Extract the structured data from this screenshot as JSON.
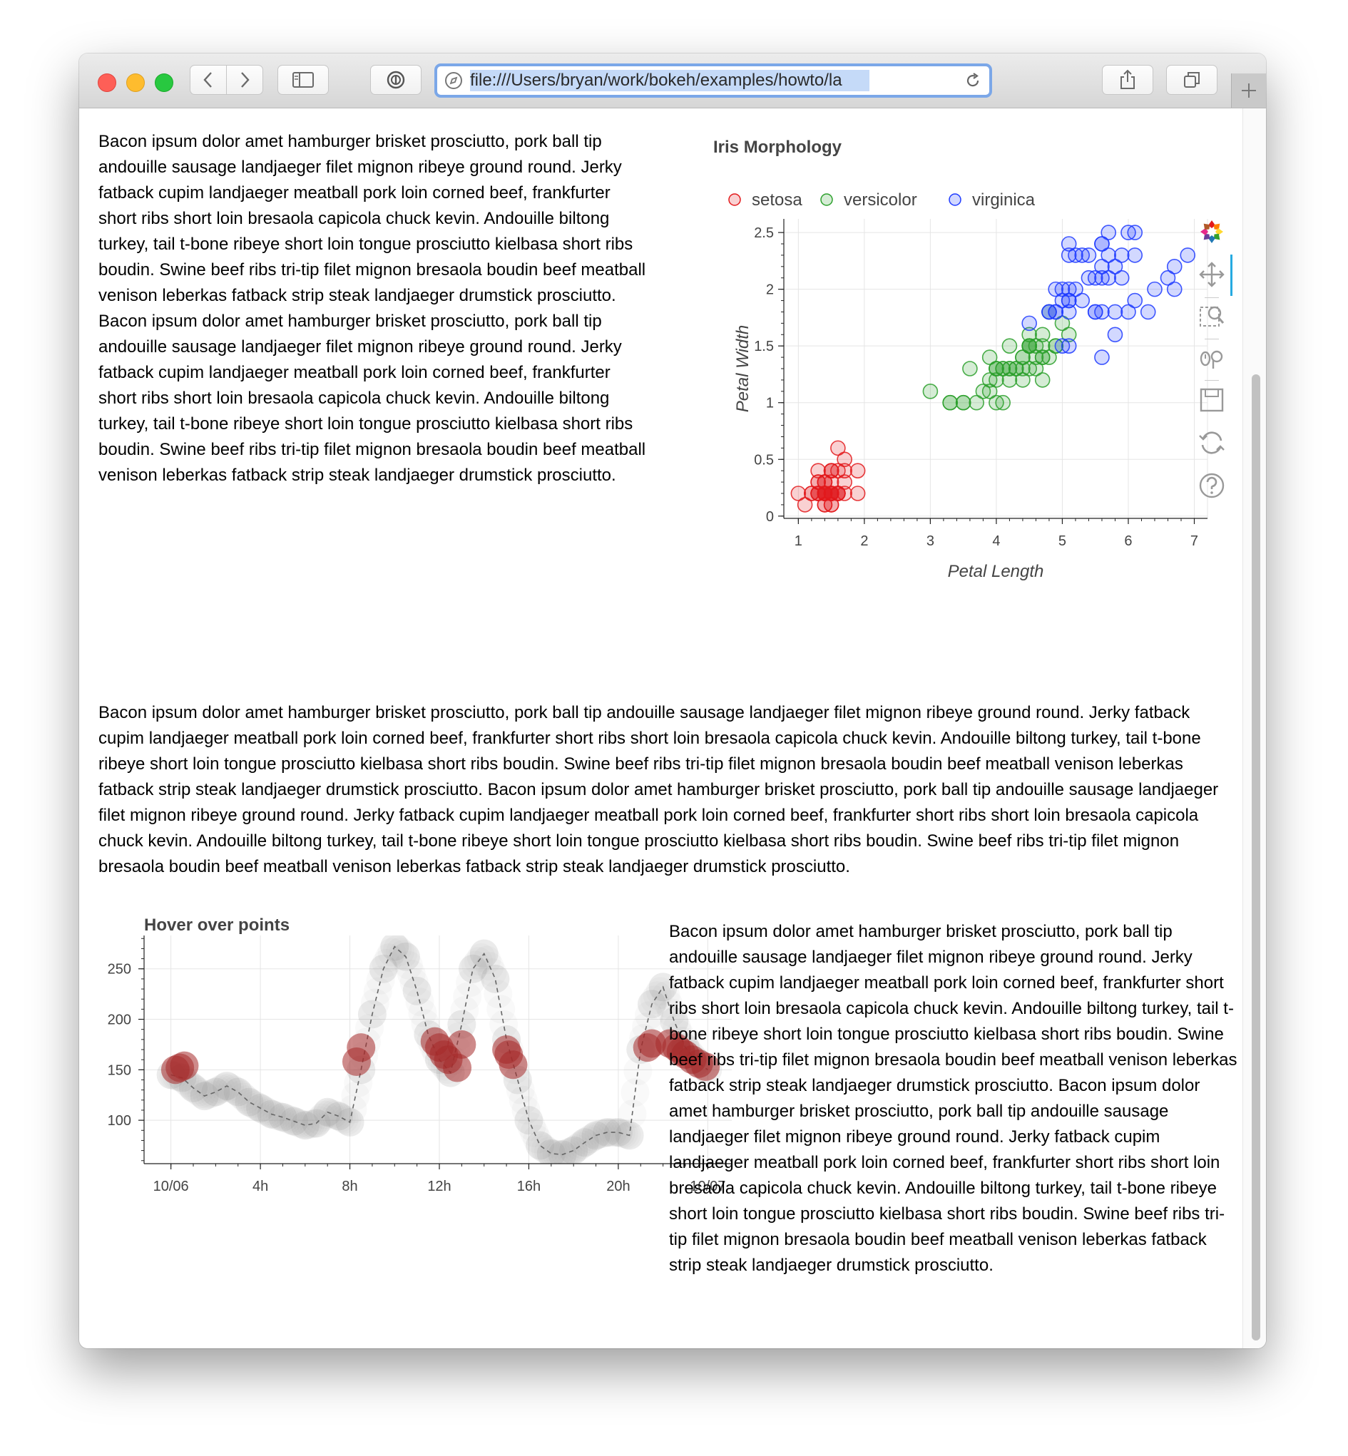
{
  "browser": {
    "url": "file:///Users/bryan/work/bokeh/examples/howto/la"
  },
  "paragraphs": {
    "p1": "Bacon ipsum dolor amet hamburger brisket prosciutto, pork ball tip andouille sausage landjaeger filet mignon ribeye ground round. Jerky fatback cupim landjaeger meatball pork loin corned beef, frankfurter short ribs short loin bresaola capicola chuck kevin. Andouille biltong turkey, tail t-bone ribeye short loin tongue prosciutto kielbasa short ribs boudin. Swine beef ribs tri-tip filet mignon bresaola boudin beef meatball venison leberkas fatback strip steak landjaeger drumstick prosciutto. Bacon ipsum dolor amet hamburger brisket prosciutto, pork ball tip andouille sausage landjaeger filet mignon ribeye ground round. Jerky fatback cupim landjaeger meatball pork loin corned beef, frankfurter short ribs short loin bresaola capicola chuck kevin. Andouille biltong turkey, tail t-bone ribeye short loin tongue prosciutto kielbasa short ribs boudin. Swine beef ribs tri-tip filet mignon bresaola boudin beef meatball venison leberkas fatback strip steak landjaeger drumstick prosciutto.",
    "p2": "Bacon ipsum dolor amet hamburger brisket prosciutto, pork ball tip andouille sausage landjaeger filet mignon ribeye ground round. Jerky fatback cupim landjaeger meatball pork loin corned beef, frankfurter short ribs short loin bresaola capicola chuck kevin. Andouille biltong turkey, tail t-bone ribeye short loin tongue prosciutto kielbasa short ribs boudin. Swine beef ribs tri-tip filet mignon bresaola boudin beef meatball venison leberkas fatback strip steak landjaeger drumstick prosciutto. Bacon ipsum dolor amet hamburger brisket prosciutto, pork ball tip andouille sausage landjaeger filet mignon ribeye ground round. Jerky fatback cupim landjaeger meatball pork loin corned beef, frankfurter short ribs short loin bresaola capicola chuck kevin. Andouille biltong turkey, tail t-bone ribeye short loin tongue prosciutto kielbasa short ribs boudin. Swine beef ribs tri-tip filet mignon bresaola boudin beef meatball venison leberkas fatback strip steak landjaeger drumstick prosciutto.",
    "p3": "Bacon ipsum dolor amet hamburger brisket prosciutto, pork ball tip andouille sausage landjaeger filet mignon ribeye ground round. Jerky fatback cupim landjaeger meatball pork loin corned beef, frankfurter short ribs short loin bresaola capicola chuck kevin. Andouille biltong turkey, tail t-bone ribeye short loin tongue prosciutto kielbasa short ribs boudin. Swine beef ribs tri-tip filet mignon bresaola boudin beef meatball venison leberkas fatback strip steak landjaeger drumstick prosciutto. Bacon ipsum dolor amet hamburger brisket prosciutto, pork ball tip andouille sausage landjaeger filet mignon ribeye ground round. Jerky fatback cupim landjaeger meatball pork loin corned beef, frankfurter short ribs short loin bresaola capicola chuck kevin. Andouille biltong turkey, tail t-bone ribeye short loin tongue prosciutto kielbasa short ribs boudin. Swine beef ribs tri-tip filet mignon bresaola boudin beef meatball venison leberkas fatback strip steak landjaeger drumstick prosciutto."
  },
  "toolbar_icons": [
    "bokeh-logo-icon",
    "pan-icon",
    "box-zoom-icon",
    "wheel-zoom-icon",
    "save-icon",
    "reset-icon",
    "help-icon"
  ],
  "chart_data": [
    {
      "type": "scatter",
      "title": "Iris Morphology",
      "xlabel": "Petal Length",
      "ylabel": "Petal Width",
      "xlim": [
        0.78,
        7.2
      ],
      "ylim": [
        -0.02,
        2.62
      ],
      "xticks": [
        "1",
        "2",
        "3",
        "4",
        "5",
        "6",
        "7"
      ],
      "yticks": [
        "0",
        "0.5",
        "1",
        "1.5",
        "2",
        "2.5"
      ],
      "grid": true,
      "legend": "top",
      "series": [
        {
          "name": "setosa",
          "color": "#e31a1c",
          "x": [
            1.4,
            1.4,
            1.3,
            1.5,
            1.4,
            1.7,
            1.4,
            1.5,
            1.4,
            1.5,
            1.5,
            1.6,
            1.4,
            1.1,
            1.2,
            1.5,
            1.3,
            1.4,
            1.7,
            1.5,
            1.7,
            1.5,
            1.0,
            1.7,
            1.9,
            1.6,
            1.6,
            1.5,
            1.4,
            1.6,
            1.6,
            1.5,
            1.5,
            1.4,
            1.5,
            1.2,
            1.3,
            1.4,
            1.3,
            1.5,
            1.3,
            1.3,
            1.3,
            1.6,
            1.9,
            1.4,
            1.6,
            1.4,
            1.5,
            1.4
          ],
          "y": [
            0.2,
            0.2,
            0.2,
            0.2,
            0.2,
            0.4,
            0.3,
            0.2,
            0.2,
            0.1,
            0.2,
            0.2,
            0.1,
            0.1,
            0.2,
            0.4,
            0.4,
            0.3,
            0.3,
            0.3,
            0.2,
            0.4,
            0.2,
            0.5,
            0.2,
            0.2,
            0.4,
            0.2,
            0.2,
            0.2,
            0.2,
            0.4,
            0.1,
            0.2,
            0.2,
            0.2,
            0.2,
            0.1,
            0.2,
            0.2,
            0.3,
            0.3,
            0.2,
            0.6,
            0.4,
            0.3,
            0.2,
            0.2,
            0.2,
            0.2
          ]
        },
        {
          "name": "versicolor",
          "color": "#2ca02c",
          "x": [
            4.7,
            4.5,
            4.9,
            4.0,
            4.6,
            4.5,
            4.7,
            3.3,
            4.6,
            3.9,
            3.5,
            4.2,
            4.0,
            4.7,
            3.6,
            4.4,
            4.5,
            4.1,
            4.5,
            3.9,
            4.8,
            4.0,
            4.9,
            4.7,
            4.3,
            4.4,
            4.8,
            5.0,
            4.5,
            3.5,
            3.8,
            3.7,
            3.9,
            5.1,
            4.5,
            4.5,
            4.7,
            4.4,
            4.1,
            4.0,
            4.4,
            4.6,
            4.0,
            3.3,
            4.2,
            4.2,
            4.2,
            4.3,
            3.0,
            4.1
          ],
          "y": [
            1.4,
            1.5,
            1.5,
            1.3,
            1.5,
            1.3,
            1.6,
            1.0,
            1.3,
            1.4,
            1.0,
            1.5,
            1.0,
            1.4,
            1.3,
            1.4,
            1.5,
            1.0,
            1.5,
            1.1,
            1.8,
            1.3,
            1.5,
            1.2,
            1.3,
            1.4,
            1.4,
            1.7,
            1.5,
            1.0,
            1.1,
            1.0,
            1.2,
            1.6,
            1.5,
            1.6,
            1.5,
            1.3,
            1.3,
            1.3,
            1.2,
            1.4,
            1.2,
            1.0,
            1.3,
            1.2,
            1.3,
            1.3,
            1.1,
            1.3
          ]
        },
        {
          "name": "virginica",
          "color": "#1f3bff",
          "x": [
            6.0,
            5.1,
            5.9,
            5.6,
            5.8,
            6.6,
            4.5,
            6.3,
            5.8,
            6.1,
            5.1,
            5.3,
            5.5,
            5.0,
            5.1,
            5.3,
            5.5,
            6.7,
            6.9,
            5.0,
            5.7,
            4.9,
            6.7,
            4.9,
            5.7,
            6.0,
            4.8,
            4.9,
            5.6,
            5.8,
            6.1,
            6.4,
            5.6,
            5.1,
            5.6,
            6.1,
            5.6,
            5.5,
            4.8,
            5.4,
            5.6,
            5.1,
            5.1,
            5.9,
            5.7,
            5.2,
            5.0,
            5.2,
            5.4,
            5.1
          ],
          "y": [
            2.5,
            1.9,
            2.1,
            1.8,
            2.2,
            2.1,
            1.7,
            1.8,
            1.8,
            2.5,
            2.0,
            1.9,
            2.1,
            2.0,
            2.4,
            2.3,
            1.8,
            2.2,
            2.3,
            1.5,
            2.3,
            2.0,
            2.0,
            1.8,
            2.1,
            1.8,
            1.8,
            1.8,
            2.1,
            1.6,
            1.9,
            2.0,
            2.2,
            1.5,
            1.4,
            2.3,
            2.4,
            1.8,
            1.8,
            2.1,
            2.4,
            2.3,
            1.9,
            2.3,
            2.5,
            2.3,
            1.9,
            2.0,
            2.3,
            1.8
          ]
        }
      ]
    },
    {
      "type": "line",
      "title": "Hover over points",
      "xticks": [
        "10/06",
        "4h",
        "8h",
        "12h",
        "16h",
        "20h",
        "10/07"
      ],
      "yticks": [
        "100",
        "150",
        "200",
        "250"
      ],
      "xlim": [
        -1.2,
        25.2
      ],
      "ylim": [
        57,
        283
      ],
      "grid": true,
      "series": [
        {
          "color": "#999999",
          "x": [
            0,
            0.5,
            1,
            1.5,
            2,
            2.5,
            3,
            3.5,
            4,
            4.5,
            5,
            5.5,
            6,
            6.5,
            7,
            7.5,
            8,
            8.5,
            9,
            9.5,
            10,
            10.5,
            11,
            11.5,
            12,
            12.5,
            13,
            13.5,
            14,
            14.5,
            15,
            15.5,
            16,
            16.5,
            17,
            17.5,
            18,
            18.5,
            19,
            19.5,
            20,
            20.5,
            21,
            21.5,
            22,
            22.5,
            23,
            23.5,
            24
          ],
          "y": [
            145,
            142,
            132,
            124,
            128,
            134,
            128,
            118,
            112,
            106,
            103,
            99,
            95,
            97,
            108,
            104,
            98,
            150,
            205,
            250,
            272,
            262,
            228,
            185,
            160,
            147,
            195,
            250,
            265,
            240,
            180,
            140,
            100,
            75,
            67,
            66,
            70,
            78,
            85,
            88,
            88,
            85,
            170,
            215,
            232,
            198,
            172,
            158,
            150
          ]
        }
      ],
      "highlighted": {
        "color": "#a52a2a",
        "x": [
          0.2,
          0.4,
          0.6,
          8.3,
          8.5,
          11.8,
          12,
          12.2,
          12.4,
          12.8,
          13,
          15,
          15.1,
          15.3,
          21.3,
          21.5,
          22.3,
          22.6,
          22.8,
          23,
          23.3,
          23.6,
          23.9
        ],
        "y": [
          150,
          152,
          154,
          158,
          172,
          178,
          172,
          165,
          160,
          152,
          175,
          170,
          165,
          155,
          172,
          176,
          176,
          172,
          168,
          165,
          160,
          156,
          153
        ]
      }
    }
  ]
}
